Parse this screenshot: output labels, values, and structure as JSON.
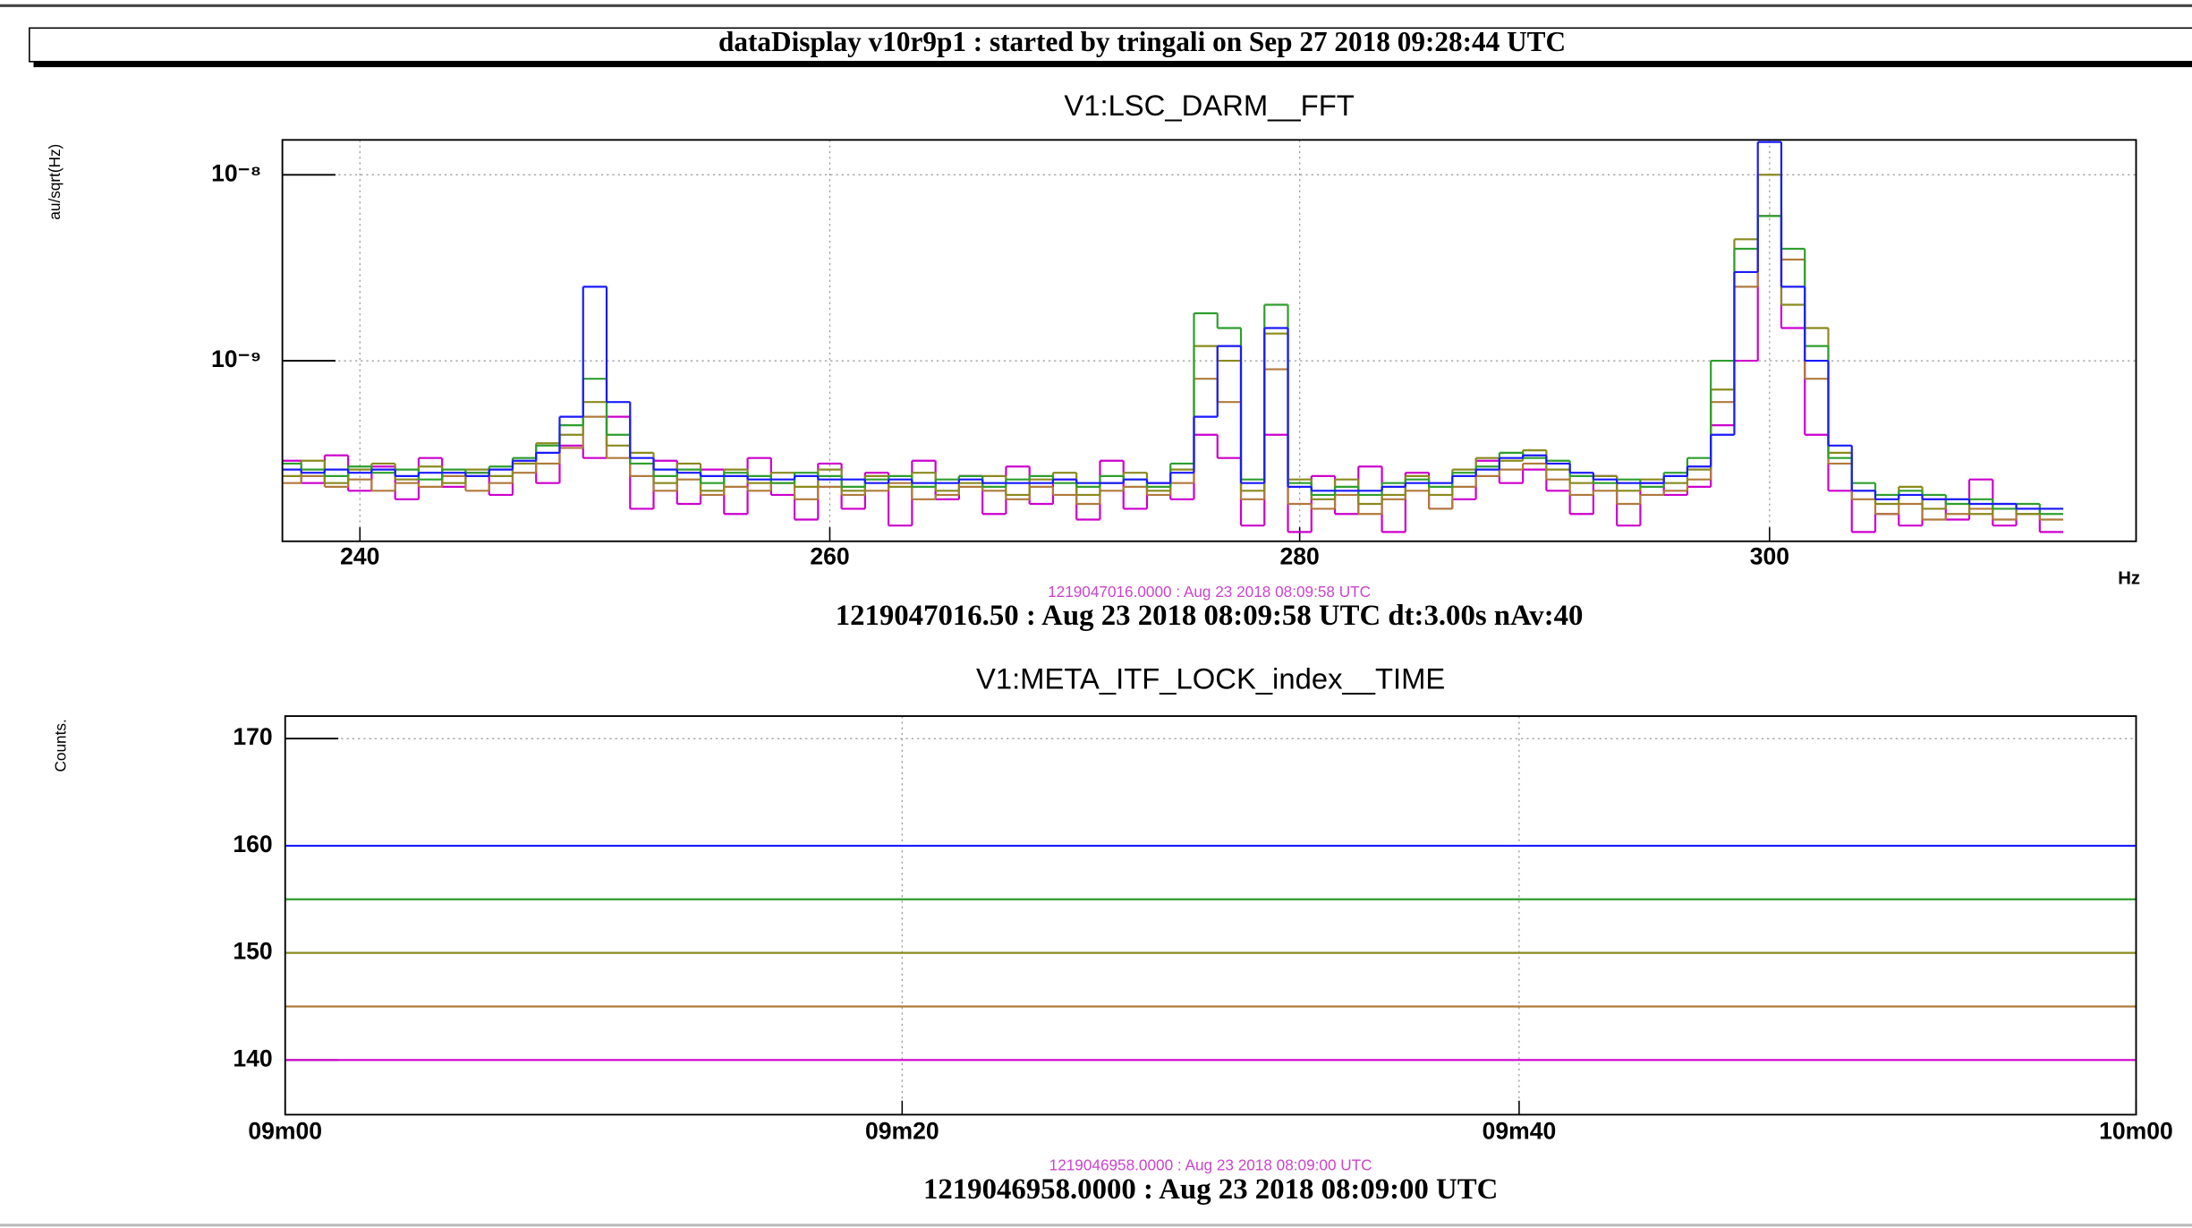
{
  "header": {
    "title": "dataDisplay v10r9p1 : started by tringali on Sep 27 2018 09:28:44 UTC"
  },
  "chart_data": [
    {
      "type": "step",
      "title": "V1:LSC_DARM__FFT",
      "ylabel": "au/sqrt(Hz)",
      "xlabel": "Hz",
      "log_y": true,
      "grid": true,
      "annotations": [
        "1219047016.0000 : Aug 23 2018 08:09:58 UTC",
        "1219047016.50 : Aug 23 2018 08:09:58 UTC dt:3.00s nAv:40"
      ],
      "xlim": [
        236.7,
        315.6
      ],
      "xticks": [
        240,
        260,
        280,
        300
      ],
      "ylim": [
        1.07e-10,
        1.54e-08
      ],
      "yticks": [
        {
          "value": 1e-08,
          "label": "10⁻⁸"
        },
        {
          "value": 1e-09,
          "label": "10⁻⁹"
        }
      ],
      "x": [
        237,
        238,
        239,
        240,
        241,
        242,
        243,
        244,
        245,
        246,
        247,
        248,
        249,
        250,
        251,
        252,
        253,
        254,
        255,
        256,
        257,
        258,
        259,
        260,
        261,
        262,
        263,
        264,
        265,
        266,
        267,
        268,
        269,
        270,
        271,
        272,
        273,
        274,
        275,
        276,
        277,
        278,
        279,
        280,
        281,
        282,
        283,
        284,
        285,
        286,
        287,
        288,
        289,
        290,
        291,
        292,
        293,
        294,
        295,
        296,
        297,
        298,
        299,
        300,
        301,
        302,
        303,
        304,
        305,
        306,
        307,
        308,
        309,
        310,
        311,
        312
      ],
      "series": [
        {
          "color": "#cc00cc",
          "values": [
            2.9e-10,
            2.2e-10,
            3.1e-10,
            2e-10,
            2.7e-10,
            1.8e-10,
            3e-10,
            2.1e-10,
            2.5e-10,
            1.9e-10,
            2.8e-10,
            2.2e-10,
            3.5e-10,
            3e-10,
            5e-10,
            1.6e-10,
            2.9e-10,
            1.7e-10,
            2.6e-10,
            1.5e-10,
            3e-10,
            1.9e-10,
            1.4e-10,
            2.8e-10,
            1.6e-10,
            2.5e-10,
            1.3e-10,
            2.9e-10,
            1.8e-10,
            2.4e-10,
            1.5e-10,
            2.7e-10,
            1.7e-10,
            2.3e-10,
            1.4e-10,
            2.9e-10,
            1.6e-10,
            2.2e-10,
            1.8e-10,
            4e-10,
            3e-10,
            1.3e-10,
            4e-10,
            1.2e-10,
            2.4e-10,
            1.5e-10,
            2.7e-10,
            1.2e-10,
            2.5e-10,
            1.6e-10,
            1.8e-10,
            2.9e-10,
            2.2e-10,
            2.6e-10,
            2e-10,
            1.5e-10,
            2.4e-10,
            1.3e-10,
            2.2e-10,
            1.9e-10,
            2.1e-10,
            4.5e-10,
            1e-09,
            6e-09,
            1.5e-09,
            4e-10,
            2e-10,
            1.2e-10,
            1.5e-10,
            1.3e-10,
            1.8e-10,
            1.4e-10,
            2.3e-10,
            1.3e-10,
            1.6e-10,
            1.2e-10
          ]
        },
        {
          "color": "#b07a3c",
          "values": [
            2.2e-10,
            2.4e-10,
            2.1e-10,
            2.3e-10,
            2e-10,
            2.2e-10,
            2.1e-10,
            2.4e-10,
            2e-10,
            2.2e-10,
            2.5e-10,
            2.8e-10,
            3.4e-10,
            5e-10,
            3e-10,
            2.4e-10,
            2e-10,
            2.3e-10,
            1.9e-10,
            2.1e-10,
            2e-10,
            2.2e-10,
            1.8e-10,
            2.1e-10,
            1.9e-10,
            2e-10,
            2.2e-10,
            1.8e-10,
            1.9e-10,
            2.1e-10,
            2e-10,
            1.8e-10,
            2.1e-10,
            1.9e-10,
            1.7e-10,
            2e-10,
            2.1e-10,
            1.9e-10,
            2.2e-10,
            8e-10,
            6e-10,
            1.8e-10,
            9e-10,
            1.7e-10,
            1.6e-10,
            1.9e-10,
            1.5e-10,
            1.8e-10,
            2e-10,
            1.6e-10,
            2.1e-10,
            2.4e-10,
            2.6e-10,
            2.8e-10,
            2.3e-10,
            1.9e-10,
            2e-10,
            1.7e-10,
            1.9e-10,
            2e-10,
            2.3e-10,
            6e-10,
            2.5e-09,
            6e-09,
            3.5e-09,
            8e-10,
            2.8e-10,
            1.8e-10,
            1.5e-10,
            1.7e-10,
            1.4e-10,
            1.5e-10,
            1.6e-10,
            1.4e-10,
            1.5e-10,
            1.4e-10
          ]
        },
        {
          "color": "#8a8a1e",
          "values": [
            2.4e-10,
            2.9e-10,
            2.2e-10,
            2.6e-10,
            2.8e-10,
            2.3e-10,
            2.7e-10,
            2.2e-10,
            2.6e-10,
            2.4e-10,
            2.8e-10,
            3.6e-10,
            4e-10,
            6e-10,
            3.5e-10,
            3.2e-10,
            2.2e-10,
            2.8e-10,
            2e-10,
            2.6e-10,
            2.2e-10,
            2.5e-10,
            2.1e-10,
            2.6e-10,
            2e-10,
            2.4e-10,
            2.1e-10,
            2.5e-10,
            2e-10,
            2.2e-10,
            2.4e-10,
            1.9e-10,
            2.3e-10,
            2.5e-10,
            1.9e-10,
            2.2e-10,
            2.5e-10,
            2e-10,
            2.6e-10,
            1.2e-09,
            1e-09,
            2e-10,
            1.4e-09,
            2.3e-10,
            1.8e-10,
            2.3e-10,
            1.7e-10,
            1.9e-10,
            2.4e-10,
            1.9e-10,
            2.6e-10,
            3e-10,
            2.9e-10,
            3.3e-10,
            2.6e-10,
            2.2e-10,
            2.4e-10,
            2e-10,
            2.3e-10,
            2.2e-10,
            2.6e-10,
            7e-10,
            4.5e-09,
            1e-08,
            2e-09,
            1.5e-09,
            3.2e-10,
            2e-10,
            1.7e-10,
            2.1e-10,
            1.6e-10,
            1.8e-10,
            1.5e-10,
            1.7e-10,
            1.5e-10,
            1.6e-10
          ]
        },
        {
          "color": "#2e9e2e",
          "values": [
            2.8e-10,
            2.6e-10,
            2.4e-10,
            2.7e-10,
            2.5e-10,
            2.6e-10,
            2.3e-10,
            2.6e-10,
            2.5e-10,
            2.7e-10,
            3e-10,
            3.5e-10,
            4.5e-10,
            8e-10,
            4e-10,
            2.8e-10,
            2.4e-10,
            2.6e-10,
            2.2e-10,
            2.5e-10,
            2.4e-10,
            2.2e-10,
            2.5e-10,
            2.4e-10,
            2.1e-10,
            2.3e-10,
            2.4e-10,
            2.1e-10,
            2.3e-10,
            2.4e-10,
            2.1e-10,
            2.3e-10,
            2.4e-10,
            2.2e-10,
            2.1e-10,
            2.4e-10,
            2.3e-10,
            2.1e-10,
            2.8e-10,
            1.8e-09,
            1.5e-09,
            2.3e-10,
            2e-09,
            2.2e-10,
            1.9e-10,
            2.1e-10,
            1.9e-10,
            2.2e-10,
            2.3e-10,
            2.1e-10,
            2.5e-10,
            2.7e-10,
            3.2e-10,
            3e-10,
            2.9e-10,
            2.4e-10,
            2.2e-10,
            2.3e-10,
            2.1e-10,
            2.5e-10,
            3e-10,
            1e-09,
            4e-09,
            6e-09,
            4e-09,
            1.2e-09,
            3e-10,
            2.2e-10,
            1.9e-10,
            2e-10,
            1.9e-10,
            1.7e-10,
            1.8e-10,
            1.6e-10,
            1.7e-10,
            1.5e-10
          ]
        },
        {
          "color": "#1a1aff",
          "values": [
            2.6e-10,
            2.5e-10,
            2.6e-10,
            2.5e-10,
            2.6e-10,
            2.4e-10,
            2.5e-10,
            2.5e-10,
            2.4e-10,
            2.6e-10,
            2.9e-10,
            3.2e-10,
            5e-10,
            2.5e-09,
            6e-10,
            3e-10,
            2.6e-10,
            2.5e-10,
            2.4e-10,
            2.4e-10,
            2.3e-10,
            2.3e-10,
            2.4e-10,
            2.3e-10,
            2.3e-10,
            2.2e-10,
            2.3e-10,
            2.2e-10,
            2.2e-10,
            2.3e-10,
            2.2e-10,
            2.2e-10,
            2.2e-10,
            2.3e-10,
            2.2e-10,
            2.2e-10,
            2.3e-10,
            2.2e-10,
            2.5e-10,
            5e-10,
            1.2e-09,
            2.2e-10,
            1.5e-09,
            2.1e-10,
            2e-10,
            2e-10,
            2e-10,
            2.1e-10,
            2.2e-10,
            2.2e-10,
            2.4e-10,
            2.6e-10,
            3e-10,
            3.1e-10,
            2.8e-10,
            2.5e-10,
            2.3e-10,
            2.2e-10,
            2.2e-10,
            2.4e-10,
            2.7e-10,
            4e-10,
            3e-09,
            1.5e-08,
            2.5e-09,
            1e-09,
            3.5e-10,
            2e-10,
            1.8e-10,
            1.9e-10,
            1.8e-10,
            1.8e-10,
            1.7e-10,
            1.7e-10,
            1.6e-10,
            1.6e-10
          ]
        }
      ]
    },
    {
      "type": "line",
      "title": "V1:META_ITF_LOCK_index__TIME",
      "ylabel": "Counts.",
      "grid": true,
      "annotations": [
        "1219046958.0000 : Aug 23 2018 08:09:00 UTC",
        "1219046958.0000 : Aug 23 2018 08:09:00 UTC"
      ],
      "xlim": [
        0,
        60
      ],
      "xticks": [
        {
          "value": 0,
          "label": "09m00"
        },
        {
          "value": 20,
          "label": "09m20"
        },
        {
          "value": 40,
          "label": "09m40"
        },
        {
          "value": 60,
          "label": "10m00"
        }
      ],
      "ylim": [
        134.9,
        172.1
      ],
      "yticks": [
        140,
        150,
        160,
        170
      ],
      "x": [
        0,
        60
      ],
      "series": [
        {
          "color": "#1a1aff",
          "values": [
            160,
            160
          ]
        },
        {
          "color": "#2e9e2e",
          "values": [
            155,
            155
          ]
        },
        {
          "color": "#8a8a1e",
          "values": [
            150,
            150
          ]
        },
        {
          "color": "#b07a3c",
          "values": [
            145,
            145
          ]
        },
        {
          "color": "#cc00cc",
          "values": [
            140,
            140
          ]
        }
      ]
    }
  ]
}
